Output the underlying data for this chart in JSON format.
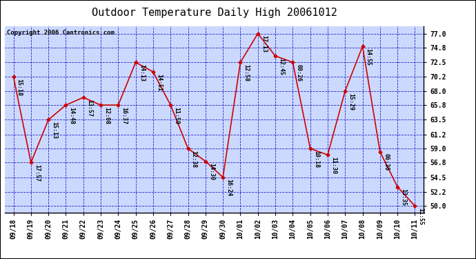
{
  "title": "Outdoor Temperature Daily High 20061012",
  "copyright": "Copyright 2006 Cantronics.com",
  "background_color": "#ffffff",
  "plot_bg_color": "#ccd9ff",
  "grid_color": "#0000bb",
  "line_color": "#cc0000",
  "marker_color": "#cc0000",
  "dates": [
    "09/18",
    "09/19",
    "09/20",
    "09/21",
    "09/22",
    "09/23",
    "09/24",
    "09/25",
    "09/26",
    "09/27",
    "09/28",
    "09/29",
    "09/30",
    "10/01",
    "10/02",
    "10/03",
    "10/04",
    "10/05",
    "10/06",
    "10/07",
    "10/08",
    "10/09",
    "10/10",
    "10/11"
  ],
  "values": [
    70.2,
    56.8,
    63.5,
    65.8,
    67.0,
    65.8,
    65.8,
    72.5,
    71.0,
    65.8,
    59.0,
    57.0,
    54.5,
    72.5,
    77.0,
    73.5,
    72.5,
    59.0,
    58.0,
    68.0,
    75.0,
    58.5,
    53.0,
    50.0
  ],
  "labels": [
    "15:18",
    "17:57",
    "15:13",
    "14:48",
    "13:57",
    "12:08",
    "16:37",
    "14:13",
    "14:51",
    "11:59",
    "12:38",
    "14:30",
    "16:24",
    "12:58",
    "17:13",
    "12:45",
    "00:26",
    "10:18",
    "11:30",
    "15:29",
    "14:55",
    "06:36",
    "13:35",
    "11:55"
  ],
  "ylim": [
    49.0,
    78.2
  ],
  "yticks": [
    50.0,
    52.2,
    54.5,
    56.8,
    59.0,
    61.2,
    63.5,
    65.8,
    68.0,
    70.2,
    72.5,
    74.8,
    77.0
  ],
  "title_fontsize": 11,
  "label_fontsize": 6,
  "tick_fontsize": 7,
  "copyright_fontsize": 6.5
}
